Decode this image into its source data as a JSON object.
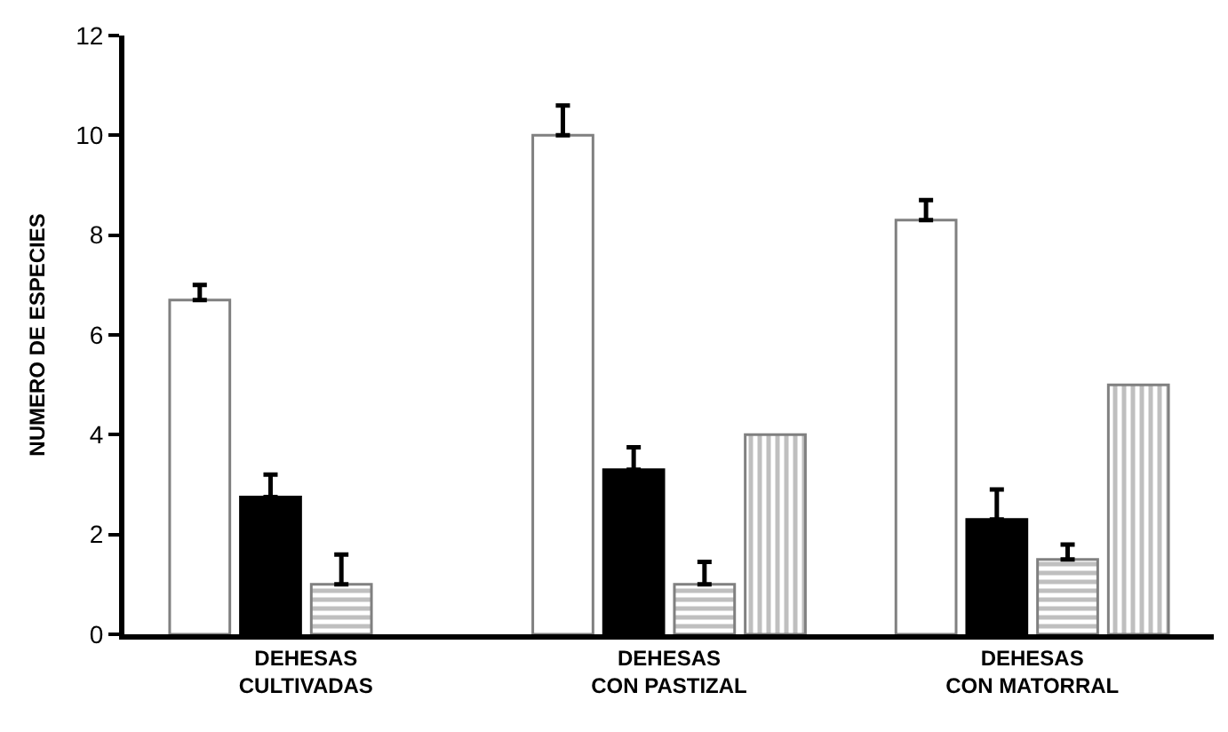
{
  "chart_data": {
    "type": "bar",
    "ylabel": "NUMERO DE ESPECIES",
    "categories": [
      "DEHESAS\nCULTIVADAS",
      "DEHESAS\nCON PASTIZAL",
      "DEHESAS\nCON MATORRAL"
    ],
    "series": [
      {
        "color": "#ffffff",
        "values": [
          6.7,
          10.0,
          8.3
        ],
        "errors": [
          [
            6.7,
            7.0
          ],
          [
            10.0,
            10.6
          ],
          [
            8.3,
            8.7
          ]
        ]
      },
      {
        "color": "#000000",
        "values": [
          2.75,
          3.3,
          2.3
        ],
        "errors": [
          [
            2.75,
            3.2
          ],
          [
            3.3,
            3.75
          ],
          [
            2.3,
            2.9
          ]
        ]
      },
      {
        "color": "#808080",
        "values": [
          1.0,
          1.0,
          1.5
        ],
        "errors": [
          [
            1.0,
            1.6
          ],
          [
            1.0,
            1.45
          ],
          [
            1.5,
            1.8
          ]
        ]
      },
      {
        "color": "#808080",
        "values": [
          null,
          4.0,
          5.0
        ]
      }
    ],
    "ylim": [
      0,
      12
    ],
    "yticks": [
      0,
      2,
      4,
      6,
      8,
      10,
      12
    ]
  }
}
